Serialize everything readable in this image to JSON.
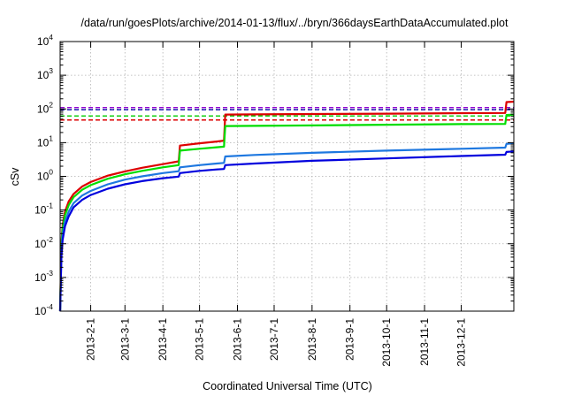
{
  "chart_data": {
    "type": "line",
    "title": "/data/run/goesPlots/archive/2014-01-13/flux/../bryn/366daysEarthDataAccumulated.plot",
    "xlabel": "Coordinated Universal Time (UTC)",
    "ylabel": "cSv",
    "y_scale": "log",
    "ylim": [
      0.0001,
      10000
    ],
    "xlim": [
      "2013-01-07",
      "2014-01-13"
    ],
    "grid": true,
    "legend": "none",
    "x_ticks": [
      {
        "date": "2013-02-01",
        "label": "2013-2-1"
      },
      {
        "date": "2013-03-01",
        "label": "2013-3-1"
      },
      {
        "date": "2013-04-01",
        "label": "2013-4-1"
      },
      {
        "date": "2013-05-01",
        "label": "2013-5-1"
      },
      {
        "date": "2013-06-01",
        "label": "2013-6-1"
      },
      {
        "date": "2013-07-01",
        "label": "2013-7-1"
      },
      {
        "date": "2013-08-01",
        "label": "2013-8-1"
      },
      {
        "date": "2013-09-01",
        "label": "2013-9-1"
      },
      {
        "date": "2013-10-01",
        "label": "2013-10-1"
      },
      {
        "date": "2013-11-01",
        "label": "2013-11-1"
      },
      {
        "date": "2013-12-01",
        "label": "2013-12-1"
      }
    ],
    "y_ticks": [
      {
        "value": 0.0001,
        "base": "10",
        "exp": "-4"
      },
      {
        "value": 0.001,
        "base": "10",
        "exp": "-3"
      },
      {
        "value": 0.01,
        "base": "10",
        "exp": "-2"
      },
      {
        "value": 0.1,
        "base": "10",
        "exp": "-1"
      },
      {
        "value": 1,
        "base": "10",
        "exp": "0"
      },
      {
        "value": 10,
        "base": "10",
        "exp": "1"
      },
      {
        "value": 100,
        "base": "10",
        "exp": "2"
      },
      {
        "value": 1000,
        "base": "10",
        "exp": "3"
      },
      {
        "value": 10000,
        "base": "10",
        "exp": "4"
      }
    ],
    "thresholds": [
      {
        "value": 110,
        "color": "#9400d3"
      },
      {
        "value": 95,
        "color": "#0000aa"
      },
      {
        "value": 62,
        "color": "#00cc00"
      },
      {
        "value": 47,
        "color": "#dd0000"
      }
    ],
    "series": [
      {
        "color": "#dd0000",
        "points": [
          [
            "2013-01-07",
            0.0001
          ],
          [
            "2013-01-08",
            0.01
          ],
          [
            "2013-01-09",
            0.035
          ],
          [
            "2013-01-11",
            0.09
          ],
          [
            "2013-01-14",
            0.18
          ],
          [
            "2013-01-18",
            0.3
          ],
          [
            "2013-01-25",
            0.5
          ],
          [
            "2013-02-01",
            0.68
          ],
          [
            "2013-02-15",
            1.05
          ],
          [
            "2013-03-01",
            1.4
          ],
          [
            "2013-03-15",
            1.8
          ],
          [
            "2013-04-01",
            2.3
          ],
          [
            "2013-04-14",
            2.8
          ],
          [
            "2013-04-15",
            8.2
          ],
          [
            "2013-05-01",
            9.6
          ],
          [
            "2013-05-15",
            10.8
          ],
          [
            "2013-05-21",
            11.5
          ],
          [
            "2013-05-22",
            68
          ],
          [
            "2013-06-15",
            69
          ],
          [
            "2013-08-01",
            70.5
          ],
          [
            "2013-10-01",
            72.5
          ],
          [
            "2013-12-01",
            75
          ],
          [
            "2014-01-06",
            76
          ],
          [
            "2014-01-07",
            160
          ],
          [
            "2014-01-13",
            165
          ]
        ]
      },
      {
        "color": "#00dd00",
        "points": [
          [
            "2013-01-07",
            0.0001
          ],
          [
            "2013-01-08",
            0.008
          ],
          [
            "2013-01-09",
            0.028
          ],
          [
            "2013-01-11",
            0.07
          ],
          [
            "2013-01-14",
            0.14
          ],
          [
            "2013-01-18",
            0.24
          ],
          [
            "2013-01-25",
            0.4
          ],
          [
            "2013-02-01",
            0.55
          ],
          [
            "2013-02-15",
            0.85
          ],
          [
            "2013-03-01",
            1.15
          ],
          [
            "2013-03-15",
            1.45
          ],
          [
            "2013-04-01",
            1.85
          ],
          [
            "2013-04-14",
            2.15
          ],
          [
            "2013-04-15",
            5.8
          ],
          [
            "2013-05-01",
            6.6
          ],
          [
            "2013-05-15",
            7.3
          ],
          [
            "2013-05-21",
            7.6
          ],
          [
            "2013-05-22",
            31
          ],
          [
            "2013-06-15",
            31.5
          ],
          [
            "2013-08-01",
            32.5
          ],
          [
            "2013-10-01",
            34
          ],
          [
            "2013-12-01",
            35.5
          ],
          [
            "2014-01-06",
            36
          ],
          [
            "2014-01-07",
            66
          ],
          [
            "2014-01-13",
            68
          ]
        ]
      },
      {
        "color": "#1e78e0",
        "points": [
          [
            "2013-01-07",
            0.0001
          ],
          [
            "2013-01-08",
            0.005
          ],
          [
            "2013-01-09",
            0.018
          ],
          [
            "2013-01-11",
            0.045
          ],
          [
            "2013-01-14",
            0.09
          ],
          [
            "2013-01-18",
            0.16
          ],
          [
            "2013-01-25",
            0.27
          ],
          [
            "2013-02-01",
            0.37
          ],
          [
            "2013-02-15",
            0.58
          ],
          [
            "2013-03-01",
            0.8
          ],
          [
            "2013-03-15",
            1.0
          ],
          [
            "2013-04-01",
            1.25
          ],
          [
            "2013-04-14",
            1.42
          ],
          [
            "2013-04-15",
            1.85
          ],
          [
            "2013-05-01",
            2.15
          ],
          [
            "2013-05-15",
            2.4
          ],
          [
            "2013-05-21",
            2.5
          ],
          [
            "2013-05-22",
            3.9
          ],
          [
            "2013-06-15",
            4.3
          ],
          [
            "2013-08-01",
            5.0
          ],
          [
            "2013-10-01",
            5.8
          ],
          [
            "2013-12-01",
            6.6
          ],
          [
            "2014-01-06",
            7.1
          ],
          [
            "2014-01-07",
            9.2
          ],
          [
            "2014-01-13",
            9.5
          ]
        ]
      },
      {
        "color": "#0000dd",
        "points": [
          [
            "2013-01-07",
            0.0001
          ],
          [
            "2013-01-08",
            0.004
          ],
          [
            "2013-01-09",
            0.013
          ],
          [
            "2013-01-11",
            0.033
          ],
          [
            "2013-01-14",
            0.065
          ],
          [
            "2013-01-18",
            0.12
          ],
          [
            "2013-01-25",
            0.2
          ],
          [
            "2013-02-01",
            0.28
          ],
          [
            "2013-02-15",
            0.43
          ],
          [
            "2013-03-01",
            0.58
          ],
          [
            "2013-03-15",
            0.72
          ],
          [
            "2013-04-01",
            0.88
          ],
          [
            "2013-04-14",
            0.98
          ],
          [
            "2013-04-15",
            1.25
          ],
          [
            "2013-05-01",
            1.45
          ],
          [
            "2013-05-15",
            1.6
          ],
          [
            "2013-05-21",
            1.65
          ],
          [
            "2013-05-22",
            2.15
          ],
          [
            "2013-06-15",
            2.4
          ],
          [
            "2013-08-01",
            2.9
          ],
          [
            "2013-10-01",
            3.4
          ],
          [
            "2013-12-01",
            4.0
          ],
          [
            "2014-01-06",
            4.4
          ],
          [
            "2014-01-07",
            5.3
          ],
          [
            "2014-01-13",
            5.5
          ]
        ]
      }
    ]
  }
}
